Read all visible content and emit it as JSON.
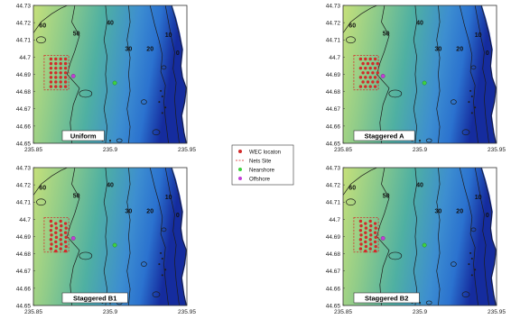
{
  "legend": {
    "items": [
      {
        "label": "WEC locaton",
        "kind": "dot",
        "color": "#d32a2a"
      },
      {
        "label": "Nets Site",
        "kind": "dash",
        "color": "#d32a2a"
      },
      {
        "label": "Nearshore",
        "kind": "dot",
        "color": "#3fd23f"
      },
      {
        "label": "Offshore",
        "kind": "dot",
        "color": "#c23fd6"
      }
    ]
  },
  "colors": {
    "shallow": "#c6e07a",
    "mid": "#4fb0a2",
    "deep": "#2b72cf",
    "deepest": "#152c9e",
    "land": "#ffffff",
    "contour": "#1c1c1c"
  },
  "chart_data": [
    {
      "type": "map",
      "title": "Uniform",
      "xlim": [
        235.85,
        235.95
      ],
      "ylim": [
        44.65,
        44.73
      ],
      "xticks": [
        "235.85",
        "235.9",
        "235.95"
      ],
      "yticks": [
        "44.65",
        "44.66",
        "44.67",
        "44.68",
        "44.69",
        "44.7",
        "44.71",
        "44.72",
        "44.73"
      ],
      "contour_labels": [
        "60",
        "50",
        "40",
        "30",
        "20",
        "10",
        "0"
      ],
      "layout": "uniform",
      "nets_site": {
        "lon": [
          235.857,
          235.873
        ],
        "lat": [
          44.681,
          44.701
        ]
      },
      "nearshore": {
        "lon": 235.903,
        "lat": 44.685
      },
      "offshore": {
        "lon": 235.876,
        "lat": 44.689
      }
    },
    {
      "type": "map",
      "title": "Staggered A",
      "xlim": [
        235.85,
        235.95
      ],
      "ylim": [
        44.65,
        44.73
      ],
      "xticks": [
        "235.85",
        "235.9",
        "235.95"
      ],
      "yticks": [
        "44.65",
        "44.66",
        "44.67",
        "44.68",
        "44.69",
        "44.7",
        "44.71",
        "44.72",
        "44.73"
      ],
      "contour_labels": [
        "60",
        "50",
        "40",
        "30",
        "20",
        "10",
        "0"
      ],
      "layout": "staggeredA",
      "nets_site": {
        "lon": [
          235.857,
          235.873
        ],
        "lat": [
          44.681,
          44.701
        ]
      },
      "nearshore": {
        "lon": 235.903,
        "lat": 44.685
      },
      "offshore": {
        "lon": 235.876,
        "lat": 44.689
      }
    },
    {
      "type": "map",
      "title": "Staggered B1",
      "xlim": [
        235.85,
        235.95
      ],
      "ylim": [
        44.65,
        44.73
      ],
      "xticks": [
        "235.85",
        "235.9",
        "235.95"
      ],
      "yticks": [
        "44.65",
        "44.66",
        "44.67",
        "44.68",
        "44.69",
        "44.7",
        "44.71",
        "44.72",
        "44.73"
      ],
      "contour_labels": [
        "60",
        "50",
        "40",
        "30",
        "20",
        "10",
        "0"
      ],
      "layout": "staggeredB1",
      "nets_site": {
        "lon": [
          235.857,
          235.873
        ],
        "lat": [
          44.681,
          44.701
        ]
      },
      "nearshore": {
        "lon": 235.903,
        "lat": 44.685
      },
      "offshore": {
        "lon": 235.876,
        "lat": 44.689
      }
    },
    {
      "type": "map",
      "title": "Staggered B2",
      "xlim": [
        235.85,
        235.95
      ],
      "ylim": [
        44.65,
        44.73
      ],
      "xticks": [
        "235.85",
        "235.9",
        "235.95"
      ],
      "yticks": [
        "44.65",
        "44.66",
        "44.67",
        "44.68",
        "44.69",
        "44.7",
        "44.71",
        "44.72",
        "44.73"
      ],
      "contour_labels": [
        "60",
        "50",
        "40",
        "30",
        "20",
        "10",
        "0"
      ],
      "layout": "staggeredB2",
      "nets_site": {
        "lon": [
          235.857,
          235.873
        ],
        "lat": [
          44.681,
          44.701
        ]
      },
      "nearshore": {
        "lon": 235.903,
        "lat": 44.685
      },
      "offshore": {
        "lon": 235.876,
        "lat": 44.689
      }
    }
  ]
}
